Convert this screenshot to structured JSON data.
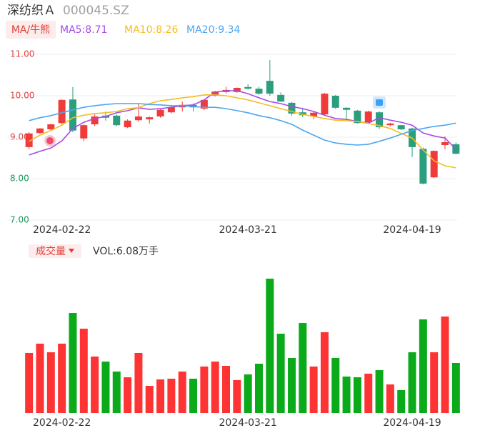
{
  "chart_data": [
    {
      "type": "candlestick",
      "title": "深纺织Ａ",
      "subtitle": "000045.SZ",
      "indicator_label": "MA/牛熊",
      "categories": [
        null,
        null,
        null,
        "2024-02-22",
        null,
        null,
        null,
        null,
        null,
        null,
        null,
        null,
        null,
        null,
        null,
        null,
        null,
        null,
        null,
        null,
        "2024-03-21",
        null,
        null,
        null,
        null,
        null,
        null,
        null,
        null,
        null,
        null,
        null,
        null,
        null,
        null,
        "2024-04-19",
        null,
        null,
        null,
        null
      ],
      "open": [
        8.76,
        9.1,
        9.19,
        9.34,
        9.91,
        8.97,
        9.31,
        9.52,
        9.52,
        9.24,
        9.41,
        9.43,
        9.5,
        9.6,
        9.72,
        9.78,
        9.69,
        10.0,
        10.09,
        10.09,
        10.21,
        10.17,
        10.36,
        10.02,
        9.83,
        9.6,
        9.5,
        9.55,
        10.0,
        9.71,
        9.64,
        9.36,
        9.6,
        9.29,
        9.29,
        9.21,
        8.72,
        8.03,
        8.81,
        8.83
      ],
      "high": [
        9.12,
        9.22,
        9.33,
        9.91,
        10.21,
        9.31,
        9.55,
        9.62,
        9.55,
        9.43,
        9.81,
        9.5,
        9.68,
        9.75,
        9.86,
        9.82,
        9.91,
        10.12,
        10.22,
        10.2,
        10.28,
        10.22,
        10.86,
        10.08,
        9.85,
        9.71,
        9.62,
        10.07,
        10.02,
        9.72,
        9.66,
        9.64,
        9.62,
        9.35,
        9.3,
        9.23,
        8.75,
        8.68,
        9.02,
        8.87
      ],
      "low": [
        8.72,
        9.08,
        9.15,
        9.3,
        9.12,
        8.9,
        9.27,
        9.4,
        9.26,
        9.22,
        9.38,
        9.33,
        9.47,
        9.57,
        9.62,
        9.62,
        9.65,
        9.98,
        10.06,
        10.07,
        10.15,
        10.02,
        10.0,
        9.85,
        9.52,
        9.48,
        9.43,
        9.53,
        9.68,
        9.43,
        9.33,
        9.34,
        9.2,
        9.26,
        9.17,
        8.52,
        7.86,
        8.02,
        8.71,
        8.58
      ],
      "close": [
        9.09,
        9.21,
        9.31,
        9.9,
        9.16,
        9.29,
        9.5,
        9.47,
        9.29,
        9.4,
        9.5,
        9.48,
        9.66,
        9.72,
        9.78,
        9.72,
        9.9,
        10.1,
        10.14,
        10.19,
        10.17,
        10.05,
        10.05,
        9.86,
        9.57,
        9.53,
        9.59,
        10.05,
        9.71,
        9.66,
        9.34,
        9.62,
        9.24,
        9.33,
        9.19,
        8.76,
        7.88,
        8.67,
        8.88,
        8.6
      ],
      "up_color": "#f03b3b",
      "down_color": "#2b9e7e",
      "series": [
        {
          "name": "MA5:8.71",
          "color": "#a64be6",
          "values": [
            8.57,
            8.66,
            8.74,
            8.91,
            9.21,
            9.36,
            9.45,
            9.5,
            9.59,
            9.64,
            9.71,
            9.67,
            9.69,
            9.72,
            9.76,
            9.78,
            9.9,
            10.09,
            10.12,
            10.12,
            10.05,
            9.95,
            9.86,
            9.81,
            9.74,
            9.69,
            9.62,
            9.53,
            9.45,
            9.43,
            9.38,
            9.34,
            9.47,
            9.41,
            9.36,
            9.29,
            9.1,
            9.03,
            8.98,
            8.71
          ]
        },
        {
          "name": "MA10:8.26",
          "color": "#f5bd1f",
          "values": [
            8.9,
            9.05,
            9.16,
            9.29,
            9.47,
            9.53,
            9.57,
            9.59,
            9.62,
            9.69,
            9.71,
            9.81,
            9.88,
            9.91,
            9.95,
            9.98,
            10.02,
            10.02,
            10.0,
            9.95,
            9.9,
            9.83,
            9.76,
            9.69,
            9.62,
            9.55,
            9.5,
            9.45,
            9.41,
            9.4,
            9.38,
            9.33,
            9.28,
            9.21,
            9.09,
            8.98,
            8.69,
            8.43,
            8.31,
            8.26
          ]
        },
        {
          "name": "MA20:9.34",
          "color": "#4da6f0",
          "values": [
            9.4,
            9.47,
            9.52,
            9.59,
            9.66,
            9.72,
            9.76,
            9.79,
            9.81,
            9.81,
            9.81,
            9.79,
            9.78,
            9.76,
            9.76,
            9.74,
            9.72,
            9.72,
            9.69,
            9.64,
            9.59,
            9.52,
            9.47,
            9.4,
            9.31,
            9.17,
            9.05,
            8.93,
            8.86,
            8.83,
            8.81,
            8.83,
            8.9,
            8.98,
            9.07,
            9.16,
            9.21,
            9.26,
            9.29,
            9.34
          ]
        }
      ],
      "ylim": [
        7,
        11
      ],
      "yticks": [
        {
          "value": 7,
          "label": "7.00"
        },
        {
          "value": 8,
          "label": "8.00"
        },
        {
          "value": 9,
          "label": "9.00"
        },
        {
          "value": 10,
          "label": "10.00"
        },
        {
          "value": 11,
          "label": "11.00"
        }
      ],
      "ytick_colors": [
        "#1a9a5a",
        "#1a9a5a",
        "#e04040",
        "#e04040",
        "#e04040"
      ],
      "grid": true
    },
    {
      "type": "bar",
      "title": "成交量",
      "subtitle": "VOL:6.08万手",
      "categories": [
        null,
        null,
        null,
        "2024-02-22",
        null,
        null,
        null,
        null,
        null,
        null,
        null,
        null,
        null,
        null,
        null,
        null,
        null,
        null,
        null,
        null,
        "2024-03-21",
        null,
        null,
        null,
        null,
        null,
        null,
        null,
        null,
        null,
        null,
        null,
        null,
        null,
        null,
        "2024-04-19",
        null,
        null,
        null,
        null
      ],
      "values": [
        7.3,
        8.43,
        7.38,
        8.43,
        12.16,
        10.25,
        6.86,
        6.25,
        5.04,
        4.34,
        7.3,
        3.3,
        4.08,
        4.17,
        5.04,
        4.17,
        5.65,
        6.25,
        5.73,
        4.0,
        4.69,
        5.99,
        16.33,
        9.64,
        6.69,
        10.94,
        5.65,
        9.82,
        6.69,
        4.43,
        4.34,
        4.78,
        5.21,
        3.47,
        2.78,
        7.38,
        11.38,
        7.38,
        11.73,
        6.08
      ],
      "up_color": "#fe3333",
      "down_color": "#0aaa1a"
    }
  ]
}
